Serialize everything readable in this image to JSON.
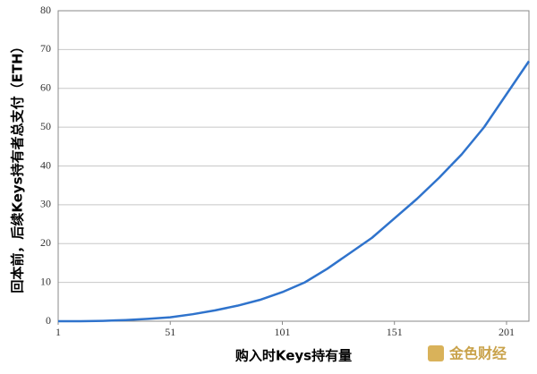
{
  "chart_data": {
    "type": "line",
    "x_label": "购入时Keys持有量",
    "y_label": "回本前，后续Keys持有者总支付（ETH）",
    "watermark": "金色财经",
    "x": [
      1,
      11,
      21,
      31,
      41,
      51,
      61,
      71,
      81,
      91,
      101,
      111,
      121,
      131,
      141,
      151,
      161,
      171,
      181,
      191,
      201,
      211
    ],
    "series": [
      {
        "color": "#2f73cc",
        "values": [
          0,
          0,
          0.1,
          0.3,
          0.6,
          1,
          1.8,
          2.8,
          4,
          5.5,
          7.5,
          10,
          13.5,
          17.5,
          21.5,
          26.5,
          31.5,
          37,
          43,
          50,
          58.5,
          67
        ]
      }
    ],
    "xlim": [
      1,
      211
    ],
    "xticks": [
      1,
      51,
      101,
      151,
      201
    ],
    "ylim": [
      0,
      80
    ],
    "yticks": [
      0,
      10,
      20,
      30,
      40,
      50,
      60,
      70,
      80
    ],
    "grid": true
  }
}
